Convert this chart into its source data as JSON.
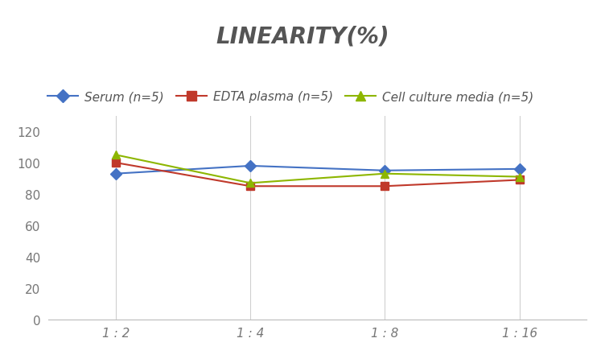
{
  "title": "LINEARITY(%)",
  "x_labels": [
    "1 : 2",
    "1 : 4",
    "1 : 8",
    "1 : 16"
  ],
  "x_positions": [
    0,
    1,
    2,
    3
  ],
  "series": [
    {
      "label": "Serum (n=5)",
      "values": [
        93,
        98,
        95,
        96
      ],
      "color": "#4472C4",
      "marker": "D",
      "linewidth": 1.5
    },
    {
      "label": "EDTA plasma (n=5)",
      "values": [
        100,
        85,
        85,
        89
      ],
      "color": "#C0392B",
      "marker": "s",
      "linewidth": 1.5
    },
    {
      "label": "Cell culture media (n=5)",
      "values": [
        105,
        87,
        93,
        91
      ],
      "color": "#8DB600",
      "marker": "^",
      "linewidth": 1.5
    }
  ],
  "ylim": [
    0,
    130
  ],
  "yticks": [
    0,
    20,
    40,
    60,
    80,
    100,
    120
  ],
  "background_color": "#FFFFFF",
  "grid_color": "#D0D0D0",
  "title_fontsize": 20,
  "legend_fontsize": 11,
  "tick_fontsize": 11,
  "title_color": "#555555",
  "tick_color": "#777777"
}
